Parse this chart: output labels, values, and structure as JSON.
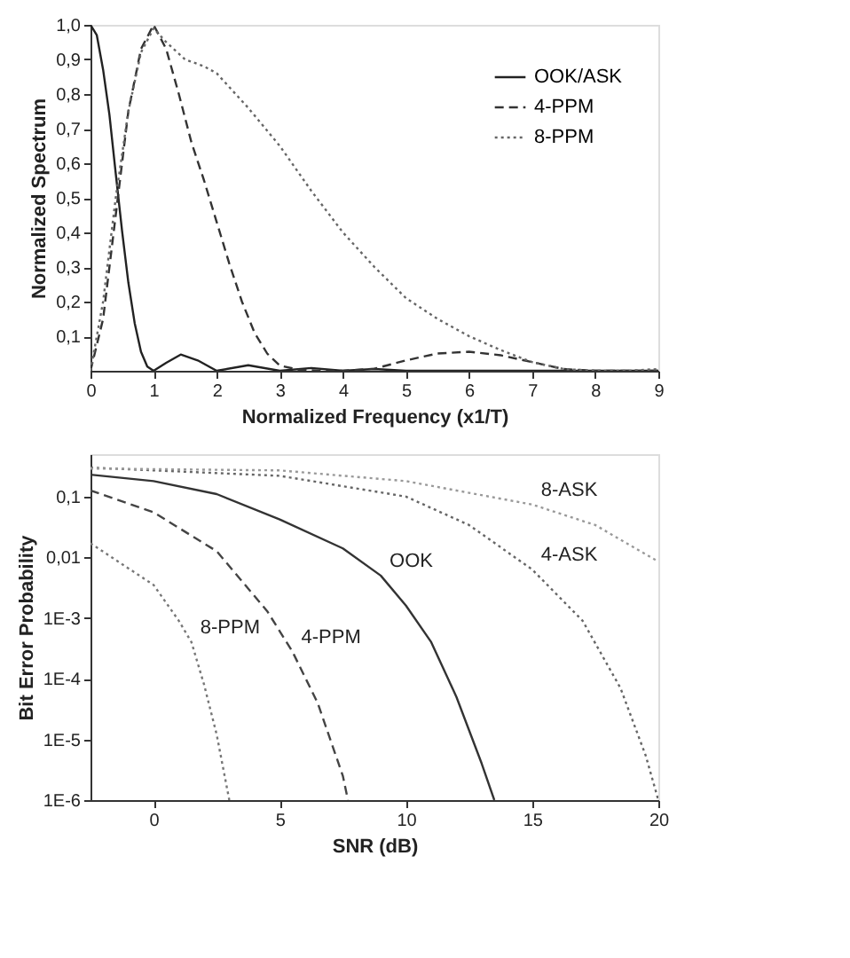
{
  "chart_data": [
    {
      "type": "line",
      "xlabel": "Normalized Frequency (x1/T)",
      "ylabel": "Normalized Spectrum",
      "xlim": [
        0,
        9
      ],
      "ylim": [
        0,
        1.0
      ],
      "xticks": [
        0,
        1,
        2,
        3,
        4,
        5,
        6,
        7,
        8,
        9
      ],
      "yticks": [
        {
          "value": 0.1,
          "label": "0,1"
        },
        {
          "value": 0.2,
          "label": "0,2"
        },
        {
          "value": 0.3,
          "label": "0,3"
        },
        {
          "value": 0.4,
          "label": "0,4"
        },
        {
          "value": 0.5,
          "label": "0,5"
        },
        {
          "value": 0.6,
          "label": "0,6"
        },
        {
          "value": 0.7,
          "label": "0,7"
        },
        {
          "value": 0.8,
          "label": "0,8"
        },
        {
          "value": 0.9,
          "label": "0,9"
        },
        {
          "value": 1.0,
          "label": "1,0"
        }
      ],
      "grid": false,
      "legend": "top right",
      "marker": "none",
      "series": [
        {
          "name": "OOK/ASK",
          "color": "#222222",
          "line_style": "solid",
          "x": [
            0,
            0.1,
            0.2,
            0.3,
            0.4,
            0.5,
            0.6,
            0.7,
            0.8,
            0.9,
            1.0,
            1.2,
            1.43,
            1.7,
            2,
            2.5,
            3,
            3.5,
            4,
            4.5,
            5,
            6,
            7,
            8,
            9
          ],
          "values": [
            1.0,
            0.97,
            0.87,
            0.74,
            0.57,
            0.405,
            0.255,
            0.138,
            0.055,
            0.012,
            0,
            0.023,
            0.047,
            0.03,
            0,
            0.016,
            0,
            0.008,
            0,
            0.005,
            0,
            0,
            0,
            0,
            0
          ]
        },
        {
          "name": "4-PPM",
          "color": "#333333",
          "line_style": "dashed",
          "x": [
            0,
            0.2,
            0.4,
            0.6,
            0.8,
            1.0,
            1.2,
            1.4,
            1.6,
            1.8,
            2.0,
            2.2,
            2.4,
            2.6,
            2.8,
            3.0,
            3.3,
            3.7,
            4,
            4.5,
            5,
            5.5,
            6,
            6.5,
            7,
            7.5,
            8,
            9
          ],
          "values": [
            0,
            0.15,
            0.45,
            0.75,
            0.93,
            1.0,
            0.93,
            0.8,
            0.66,
            0.55,
            0.43,
            0.31,
            0.2,
            0.11,
            0.05,
            0.015,
            0.003,
            0,
            0,
            0.006,
            0.03,
            0.05,
            0.055,
            0.045,
            0.025,
            0.005,
            0,
            0
          ]
        },
        {
          "name": "8-PPM",
          "color": "#666666",
          "line_style": "dotted",
          "x": [
            0,
            0.2,
            0.4,
            0.6,
            0.8,
            1.0,
            1.2,
            1.5,
            1.8,
            2.0,
            2.5,
            3.0,
            3.5,
            4.0,
            4.5,
            5.0,
            5.5,
            6.0,
            6.5,
            7.0,
            7.5,
            8.0,
            8.5,
            9
          ],
          "values": [
            0,
            0.2,
            0.5,
            0.75,
            0.92,
            0.99,
            0.95,
            0.9,
            0.88,
            0.86,
            0.76,
            0.65,
            0.52,
            0.4,
            0.3,
            0.21,
            0.15,
            0.1,
            0.06,
            0.025,
            0.005,
            0,
            0,
            0.005
          ]
        }
      ]
    },
    {
      "type": "line",
      "xlabel": "SNR (dB)",
      "ylabel": "Bit Error Probability",
      "log": "y",
      "xlim": [
        -2.5,
        20
      ],
      "ylim": [
        1e-06,
        0.5
      ],
      "xticks": [
        0,
        5,
        10,
        15,
        20
      ],
      "yticks": [
        {
          "value": 1e-06,
          "label": "1E-6"
        },
        {
          "value": 1e-05,
          "label": "1E-5"
        },
        {
          "value": 0.0001,
          "label": "1E-4"
        },
        {
          "value": 0.001,
          "label": "1E-3"
        },
        {
          "value": 0.01,
          "label": "0,01"
        },
        {
          "value": 0.1,
          "label": "0,1"
        }
      ],
      "grid": false,
      "legend": false,
      "marker": "none",
      "series": [
        {
          "name": "OOK",
          "color": "#333333",
          "line_style": "solid",
          "x": [
            -2.5,
            0,
            2.5,
            5,
            7.5,
            9,
            10,
            11,
            12,
            13,
            13.5
          ],
          "values": [
            0.23,
            0.18,
            0.11,
            0.042,
            0.014,
            0.005,
            0.0016,
            0.0004,
            5e-05,
            4e-06,
            1e-06
          ]
        },
        {
          "name": "4-PPM",
          "color": "#444444",
          "line_style": "dashed",
          "x": [
            -2.5,
            0,
            2.5,
            4.5,
            5.5,
            6.5,
            7.5,
            7.7
          ],
          "values": [
            0.126,
            0.055,
            0.0126,
            0.0013,
            0.00028,
            4e-05,
            2.5e-06,
            1e-06
          ]
        },
        {
          "name": "8-PPM",
          "color": "#777777",
          "line_style": "dotted",
          "x": [
            -2.5,
            0,
            1,
            1.5,
            2,
            2.5,
            3
          ],
          "values": [
            0.017,
            0.0035,
            0.0009,
            0.0004,
            8e-05,
            1.2e-05,
            1e-06
          ]
        },
        {
          "name": "4-ASK",
          "color": "#666666",
          "line_style": "dotted",
          "x": [
            -2.5,
            5,
            10,
            12.5,
            15,
            17,
            18.5,
            19.5,
            20
          ],
          "values": [
            0.3,
            0.22,
            0.1,
            0.034,
            0.0063,
            0.0009,
            7e-05,
            5.4e-06,
            1e-06
          ]
        },
        {
          "name": "8-ASK",
          "color": "#999999",
          "line_style": "dotted",
          "x": [
            -2.5,
            5,
            10,
            15,
            17.5,
            20
          ],
          "values": [
            0.29,
            0.27,
            0.18,
            0.074,
            0.034,
            0.0085
          ]
        }
      ]
    }
  ]
}
